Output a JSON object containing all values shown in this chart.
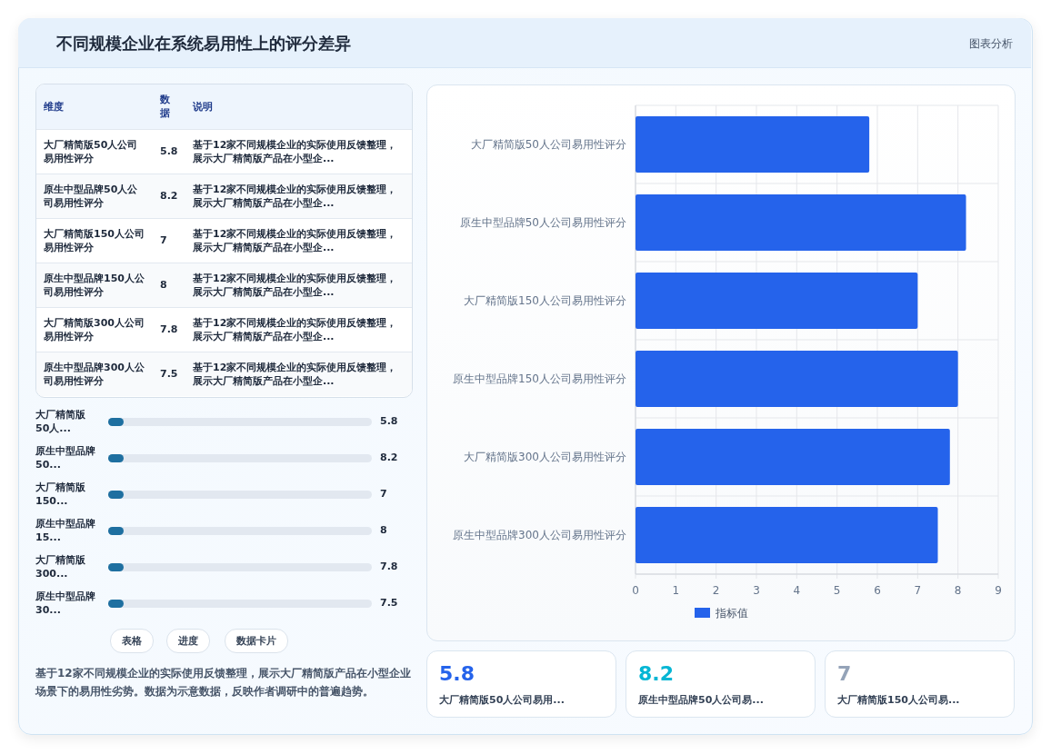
{
  "chart_data": [
    {
      "type": "other",
      "title": "不同规模企业在系统易用性上的评分差异",
      "annotations": [
        "图表分析"
      ]
    },
    {
      "type": "bar",
      "orientation": "horizontal",
      "categories": [
        "大厂精简版50人公司易用性评分",
        "原生中型品牌50人公司易用性评分",
        "大厂精简版150人公司易用性评分",
        "原生中型品牌150人公司易用性评分",
        "大厂精简版300人公司易用性评分",
        "原生中型品牌300人公司易用性评分"
      ],
      "series": [
        {
          "name": "指标值",
          "color": "#2563eb",
          "values": [
            5.8,
            8.2,
            7,
            8,
            7.8,
            7.5
          ]
        }
      ],
      "xlim": [
        0,
        9
      ],
      "xticks": [
        0,
        1,
        2,
        3,
        4,
        5,
        6,
        7,
        8,
        9
      ],
      "grid": true,
      "legend": "bottom"
    },
    {
      "type": "other",
      "annotations": [
        "维度",
        "数据",
        "说明",
        "大厂精简版50人公司易用性评分",
        "5.8",
        "基于12家不同规模企业的实际使用反馈整理，展示大厂精简版产品在小型企...",
        "原生中型品牌50人公司易用性评分",
        "8.2",
        "基于12家不同规模企业的实际使用反馈整理，展示大厂精简版产品在小型企...",
        "大厂精简版150人公司易用性评分",
        "7",
        "基于12家不同规模企业的实际使用反馈整理，展示大厂精简版产品在小型企...",
        "原生中型品牌150人公司易用性评分",
        "8",
        "基于12家不同规模企业的实际使用反馈整理，展示大厂精简版产品在小型企...",
        "大厂精简版300人公司易用性评分",
        "7.8",
        "基于12家不同规模企业的实际使用反馈整理，展示大厂精简版产品在小型企...",
        "原生中型品牌300人公司易用性评分",
        "7.5",
        "基于12家不同规模企业的实际使用反馈整理，展示大厂精简版产品在小型企..."
      ]
    },
    {
      "type": "other",
      "annotations": [
        "大厂精简版 50人...",
        "5.8",
        "原生中型品牌 50...",
        "8.2",
        "大厂精简版 150...",
        "7",
        "原生中型品牌 15...",
        "8",
        "大厂精简版 300...",
        "7.8",
        "原生中型品牌 30...",
        "7.5"
      ]
    },
    {
      "type": "other",
      "annotations": [
        "表格",
        "进度",
        "数据卡片"
      ]
    },
    {
      "type": "other",
      "annotations": [
        "基于12家不同规模企业的实际使用反馈整理，展示大厂精简版产品在小型企业场景下的易用性劣势。数据为示意数据，反映作者调研中的普遍趋势。"
      ]
    },
    {
      "type": "other",
      "colors": [
        "#2563eb",
        "#06b6d4",
        "#94a3b8"
      ],
      "annotations": [
        "5.8",
        "大厂精简版50人公司易用...",
        "8.2",
        "原生中型品牌50人公司易...",
        "7",
        "大厂精简版150人公司易..."
      ]
    }
  ]
}
